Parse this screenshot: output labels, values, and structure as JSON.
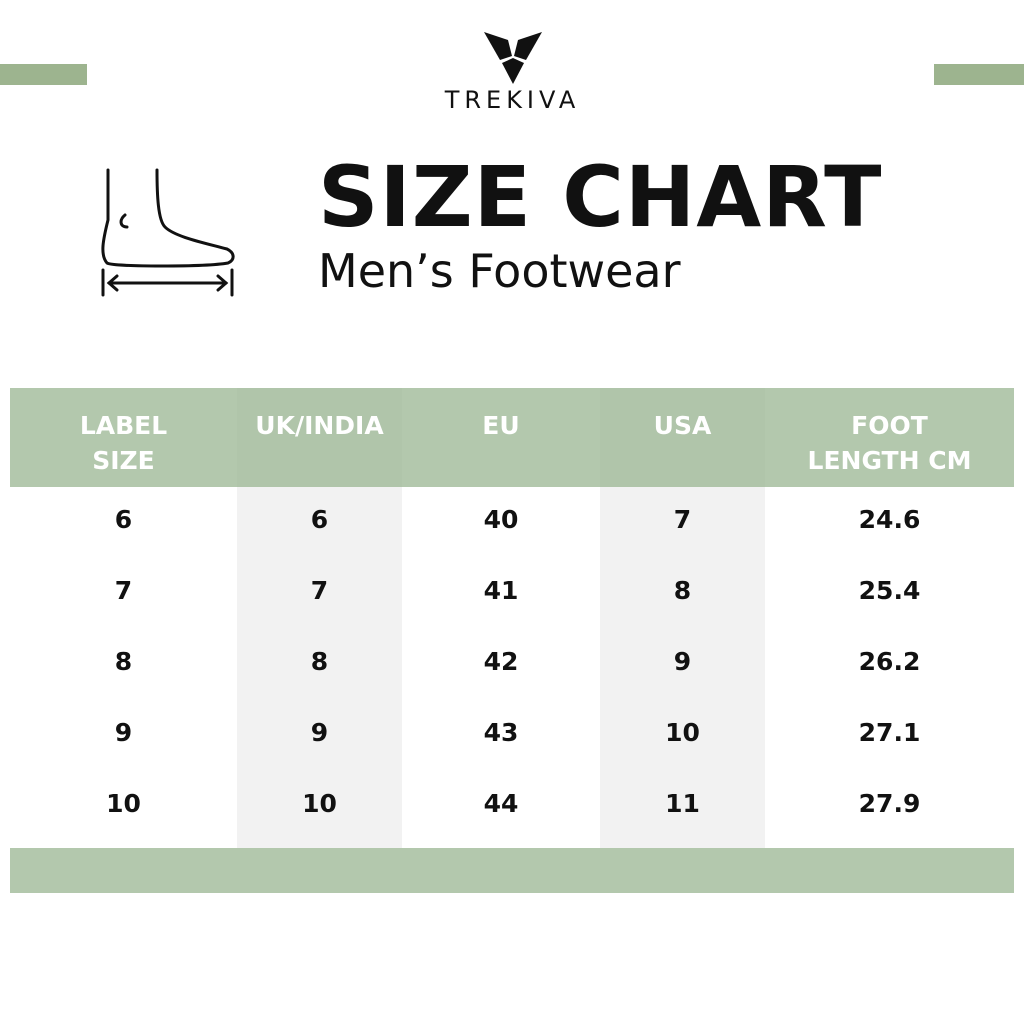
{
  "brand": {
    "name": "TREKIVA"
  },
  "colors": {
    "accent": "#9db48f",
    "header": "#b3c8ad",
    "column_shade": "#f2f2f2"
  },
  "title": "SIZE CHART",
  "subtitle": "Men’s Footwear",
  "icons": {
    "foot": "foot-length-icon",
    "logo": "trekiva-logo-icon"
  },
  "table": {
    "headers": [
      "LABEL\nSIZE",
      "UK/INDIA",
      "EU",
      "USA",
      "FOOT\nLENGTH CM"
    ],
    "rows": [
      [
        "6",
        "6",
        "40",
        "7",
        "24.6"
      ],
      [
        "7",
        "7",
        "41",
        "8",
        "25.4"
      ],
      [
        "8",
        "8",
        "42",
        "9",
        "26.2"
      ],
      [
        "9",
        "9",
        "43",
        "10",
        "27.1"
      ],
      [
        "10",
        "10",
        "44",
        "11",
        "27.9"
      ]
    ]
  }
}
